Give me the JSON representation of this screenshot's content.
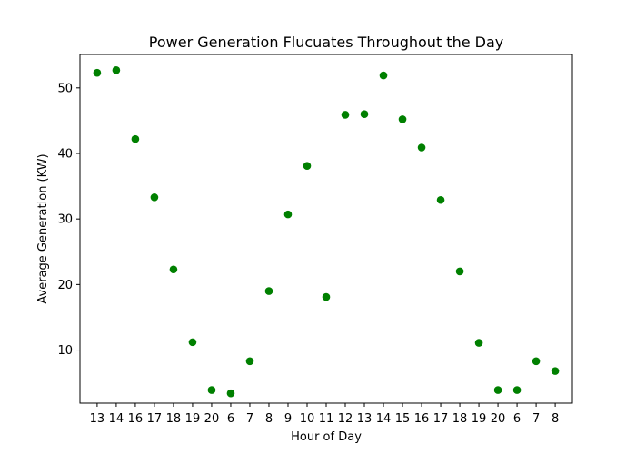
{
  "chart_data": {
    "type": "scatter",
    "title": "Power Generation Flucuates Throughout the Day",
    "xlabel": "Hour of Day",
    "ylabel": "Average Generation (KW)",
    "categories": [
      "13",
      "14",
      "16",
      "17",
      "18",
      "19",
      "20",
      "6",
      "7",
      "8",
      "9",
      "10",
      "11",
      "12",
      "13",
      "14",
      "15",
      "16",
      "17",
      "18",
      "19",
      "20",
      "6",
      "7",
      "8"
    ],
    "values": [
      52.3,
      52.7,
      42.2,
      33.3,
      22.3,
      11.2,
      3.9,
      3.4,
      8.3,
      19.0,
      30.7,
      38.1,
      18.1,
      45.9,
      46.0,
      51.9,
      45.2,
      40.9,
      32.9,
      22.0,
      11.1,
      3.9,
      3.9,
      8.3,
      6.8
    ],
    "ylim": [
      1.9,
      55.1
    ],
    "yticks": [
      10,
      20,
      30,
      40,
      50
    ],
    "grid": false,
    "legend": "none",
    "marker_color": "#008000"
  }
}
